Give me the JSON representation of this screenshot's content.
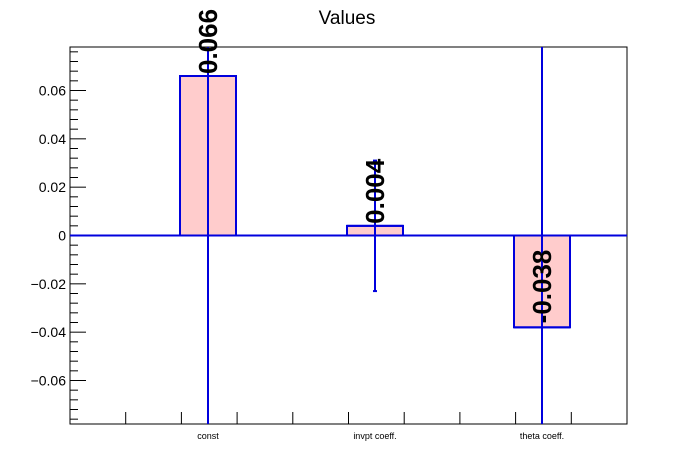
{
  "chart_data": {
    "type": "bar",
    "title": "Values",
    "categories": [
      "const",
      "invpt coeff.",
      "theta coeff."
    ],
    "values": [
      0.066,
      0.004,
      -0.038
    ],
    "value_labels": [
      "0.066",
      "0.004",
      "-0.038"
    ],
    "errors": [
      0.31,
      0.027,
      0.19
    ],
    "ylim": [
      -0.078,
      0.078
    ],
    "y_ticks": [
      -0.06,
      -0.04,
      -0.02,
      0,
      0.02,
      0.04,
      0.06
    ],
    "y_tick_labels": [
      "−0.06",
      "−0.04",
      "−0.02",
      "0",
      "0.02",
      "0.04",
      "0.06"
    ],
    "xlabel": "",
    "ylabel": "",
    "grid": false,
    "colors": {
      "bar_fill": "#ffcccc",
      "bar_stroke": "#0000dd",
      "error": "#0000dd",
      "axis": "#000000"
    }
  }
}
